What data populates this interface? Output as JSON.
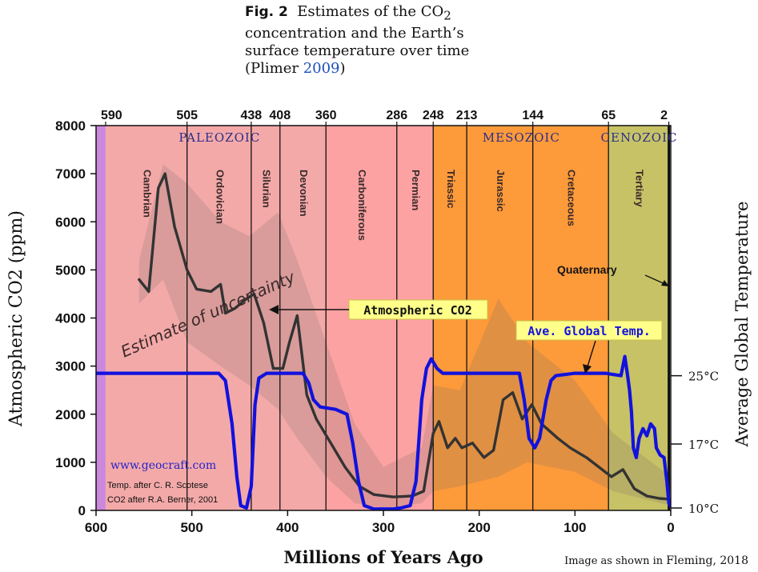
{
  "caption": {
    "fig_label": "Fig. 2",
    "line1_pre": "Estimates of the CO",
    "line1_sub": "2",
    "line2": "concentration and the Earth’s",
    "line3": "surface temperature over time",
    "line4_open": "(Plimer ",
    "line4_year": "2009",
    "line4_close": ")"
  },
  "credit": {
    "prefix": "Image as shown in ",
    "source": "Fleming, 2018"
  },
  "chart_data": {
    "type": "line",
    "xlabel": "Millions of Years Ago",
    "ylabel": "Atmospheric CO2 (ppm)",
    "y2label": "Average Global Temperature",
    "xlim": [
      600,
      0
    ],
    "ylim": [
      0,
      8000
    ],
    "x_ticks": [
      600,
      500,
      400,
      300,
      200,
      100,
      0
    ],
    "y_ticks": [
      0,
      1000,
      2000,
      3000,
      4000,
      5000,
      6000,
      7000,
      8000
    ],
    "y2_ticks": [
      {
        "label": "25°C",
        "at_ppm": 2800
      },
      {
        "label": "17°C",
        "at_ppm": 1380
      },
      {
        "label": "10°C",
        "at_ppm": 50
      }
    ],
    "top_ticks": [
      590,
      505,
      438,
      408,
      360,
      286,
      248,
      213,
      144,
      65,
      2
    ],
    "eras": [
      {
        "name": "PALEOZOIC",
        "x": 471
      },
      {
        "name": "MESOZOIC",
        "x": 156
      },
      {
        "name": "CENOZOIC",
        "x": 33
      }
    ],
    "periods": [
      {
        "name": "Cambrian",
        "start": 590,
        "end": 505,
        "color": "#f4a9a9"
      },
      {
        "name": "Ordovician",
        "start": 505,
        "end": 438,
        "color": "#f4a9a9"
      },
      {
        "name": "Silurian",
        "start": 438,
        "end": 408,
        "color": "#f4a9a9"
      },
      {
        "name": "Devonian",
        "start": 408,
        "end": 360,
        "color": "#f4a9a9"
      },
      {
        "name": "Carboniferous",
        "start": 360,
        "end": 286,
        "color": "#fca2a2"
      },
      {
        "name": "Permian",
        "start": 286,
        "end": 248,
        "color": "#fca2a2"
      },
      {
        "name": "Triassic",
        "start": 248,
        "end": 213,
        "color": "#fd9a3a"
      },
      {
        "name": "Jurassic",
        "start": 213,
        "end": 144,
        "color": "#fd9a3a"
      },
      {
        "name": "Cretaceous",
        "start": 144,
        "end": 65,
        "color": "#fd9a3a"
      },
      {
        "name": "Tertiary",
        "start": 65,
        "end": 2,
        "color": "#c7c266"
      }
    ],
    "precambrian_band": {
      "start": 600,
      "end": 590,
      "color": "#cc88dd"
    },
    "annotations": {
      "quaternary": "Quaternary",
      "atmospheric_co2": "Atmospheric CO2",
      "ave_global_temp": "Ave. Global Temp.",
      "uncertainty": "Estimate of uncertainty",
      "website": "www.geocraft.com",
      "temp_source": "Temp. after C. R. Scotese",
      "co2_source": "CO2 after R.A. Berner, 2001"
    },
    "uncertainty_band": [
      {
        "x": 555,
        "lo": 4300,
        "hi": 5200
      },
      {
        "x": 530,
        "lo": 4800,
        "hi": 7200
      },
      {
        "x": 505,
        "lo": 3500,
        "hi": 6800
      },
      {
        "x": 470,
        "lo": 3000,
        "hi": 6000
      },
      {
        "x": 440,
        "lo": 2600,
        "hi": 5700
      },
      {
        "x": 410,
        "lo": 2100,
        "hi": 6200
      },
      {
        "x": 390,
        "lo": 1500,
        "hi": 5200
      },
      {
        "x": 360,
        "lo": 700,
        "hi": 3500
      },
      {
        "x": 330,
        "lo": 150,
        "hi": 1800
      },
      {
        "x": 300,
        "lo": 50,
        "hi": 900
      },
      {
        "x": 260,
        "lo": 150,
        "hi": 1300
      },
      {
        "x": 248,
        "lo": 400,
        "hi": 2600
      },
      {
        "x": 220,
        "lo": 500,
        "hi": 2500
      },
      {
        "x": 180,
        "lo": 700,
        "hi": 4400
      },
      {
        "x": 150,
        "lo": 1000,
        "hi": 3500
      },
      {
        "x": 100,
        "lo": 800,
        "hi": 2700
      },
      {
        "x": 60,
        "lo": 400,
        "hi": 1600
      },
      {
        "x": 0,
        "lo": 100,
        "hi": 700
      }
    ],
    "series": [
      {
        "name": "Atmospheric CO2",
        "color": "#333333",
        "points": [
          [
            555,
            4800
          ],
          [
            545,
            4550
          ],
          [
            535,
            6700
          ],
          [
            528,
            7000
          ],
          [
            518,
            5900
          ],
          [
            505,
            5000
          ],
          [
            495,
            4600
          ],
          [
            480,
            4550
          ],
          [
            470,
            4700
          ],
          [
            465,
            4100
          ],
          [
            455,
            4200
          ],
          [
            443,
            4400
          ],
          [
            435,
            4500
          ],
          [
            425,
            3900
          ],
          [
            415,
            2950
          ],
          [
            405,
            2950
          ],
          [
            398,
            3500
          ],
          [
            390,
            4050
          ],
          [
            380,
            2400
          ],
          [
            370,
            1900
          ],
          [
            355,
            1400
          ],
          [
            340,
            900
          ],
          [
            325,
            500
          ],
          [
            310,
            330
          ],
          [
            290,
            280
          ],
          [
            270,
            300
          ],
          [
            258,
            400
          ],
          [
            248,
            1600
          ],
          [
            242,
            1850
          ],
          [
            233,
            1300
          ],
          [
            225,
            1500
          ],
          [
            218,
            1300
          ],
          [
            207,
            1400
          ],
          [
            195,
            1100
          ],
          [
            185,
            1250
          ],
          [
            175,
            2300
          ],
          [
            165,
            2450
          ],
          [
            155,
            1900
          ],
          [
            145,
            2200
          ],
          [
            135,
            1800
          ],
          [
            118,
            1500
          ],
          [
            105,
            1300
          ],
          [
            88,
            1100
          ],
          [
            75,
            900
          ],
          [
            62,
            700
          ],
          [
            50,
            850
          ],
          [
            38,
            450
          ],
          [
            25,
            300
          ],
          [
            12,
            250
          ],
          [
            0,
            230
          ]
        ]
      },
      {
        "name": "Ave. Global Temp.",
        "color": "#1212dd",
        "points": [
          [
            600,
            2850
          ],
          [
            472,
            2850
          ],
          [
            465,
            2700
          ],
          [
            458,
            1800
          ],
          [
            453,
            700
          ],
          [
            449,
            100
          ],
          [
            443,
            50
          ],
          [
            438,
            500
          ],
          [
            434,
            2200
          ],
          [
            430,
            2750
          ],
          [
            422,
            2850
          ],
          [
            384,
            2850
          ],
          [
            378,
            2650
          ],
          [
            373,
            2300
          ],
          [
            366,
            2150
          ],
          [
            350,
            2100
          ],
          [
            338,
            2000
          ],
          [
            332,
            1400
          ],
          [
            326,
            600
          ],
          [
            320,
            100
          ],
          [
            310,
            30
          ],
          [
            290,
            30
          ],
          [
            282,
            50
          ],
          [
            272,
            100
          ],
          [
            266,
            600
          ],
          [
            260,
            2300
          ],
          [
            255,
            2950
          ],
          [
            250,
            3150
          ],
          [
            244,
            2950
          ],
          [
            238,
            2850
          ],
          [
            158,
            2850
          ],
          [
            153,
            2300
          ],
          [
            148,
            1500
          ],
          [
            142,
            1300
          ],
          [
            137,
            1500
          ],
          [
            130,
            2300
          ],
          [
            125,
            2700
          ],
          [
            120,
            2800
          ],
          [
            100,
            2850
          ],
          [
            68,
            2850
          ],
          [
            52,
            2800
          ],
          [
            48,
            3200
          ],
          [
            45,
            2800
          ],
          [
            43,
            2500
          ],
          [
            41,
            2050
          ],
          [
            39,
            1300
          ],
          [
            36,
            1100
          ],
          [
            33,
            1500
          ],
          [
            29,
            1700
          ],
          [
            25,
            1550
          ],
          [
            21,
            1800
          ],
          [
            17,
            1700
          ],
          [
            15,
            1300
          ],
          [
            11,
            1150
          ],
          [
            7,
            1100
          ],
          [
            4,
            600
          ],
          [
            2,
            150
          ],
          [
            0,
            80
          ]
        ]
      }
    ]
  }
}
